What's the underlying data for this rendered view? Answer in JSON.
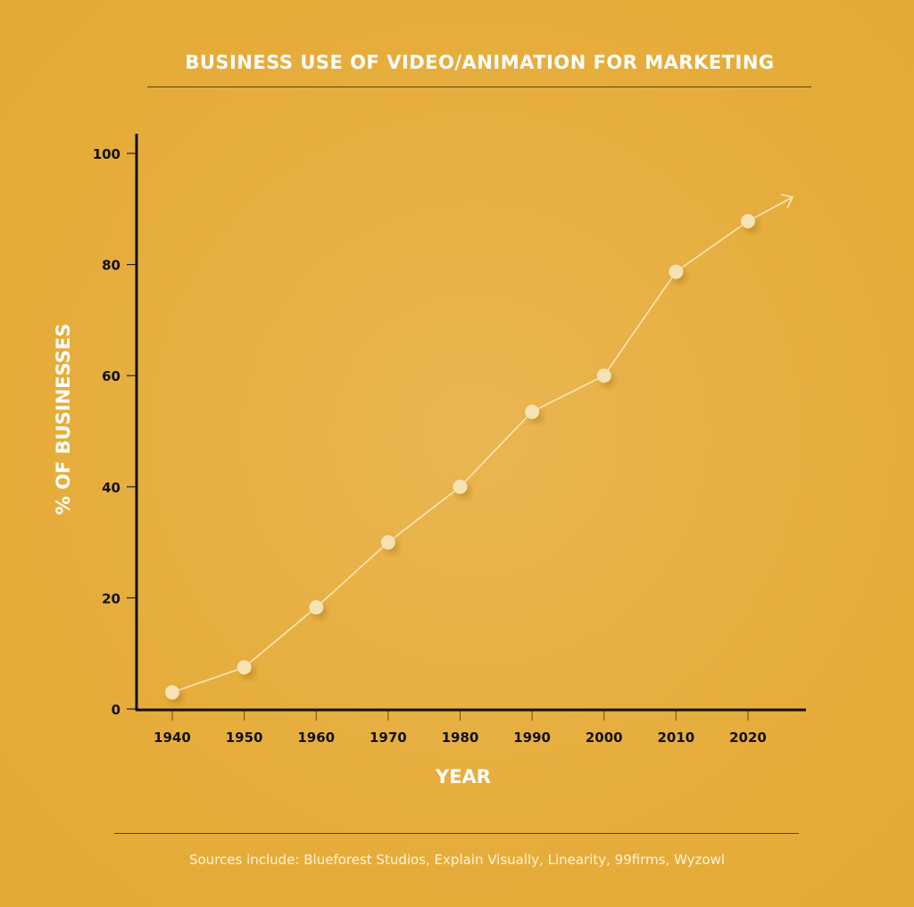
{
  "chart_data": {
    "type": "line",
    "title": "BUSINESS USE OF VIDEO/ANIMATION FOR MARKETING",
    "xlabel": "YEAR",
    "ylabel": "% OF BUSINESSES",
    "x": [
      1940,
      1950,
      1960,
      1970,
      1980,
      1990,
      2000,
      2010,
      2020
    ],
    "series": [
      {
        "name": "% of businesses",
        "values": [
          3,
          7.5,
          18.3,
          30,
          40,
          53.5,
          60,
          78.7,
          87.8
        ]
      }
    ],
    "ylim": [
      0,
      100
    ],
    "yticks": [
      0,
      20,
      40,
      60,
      80,
      100
    ],
    "xticks": [
      "1940",
      "1950",
      "1960",
      "1970",
      "1980",
      "1990",
      "2000",
      "2010",
      "2020"
    ],
    "trend_arrow": true,
    "grid": false,
    "colors": {
      "line": "#fbe7b8",
      "point": "#f6e2b4",
      "axis": "#111111"
    }
  },
  "footer": {
    "sources": "Sources include: Blueforest Studios, Explain Visually, Linearity, 99firms, Wyzowl"
  }
}
